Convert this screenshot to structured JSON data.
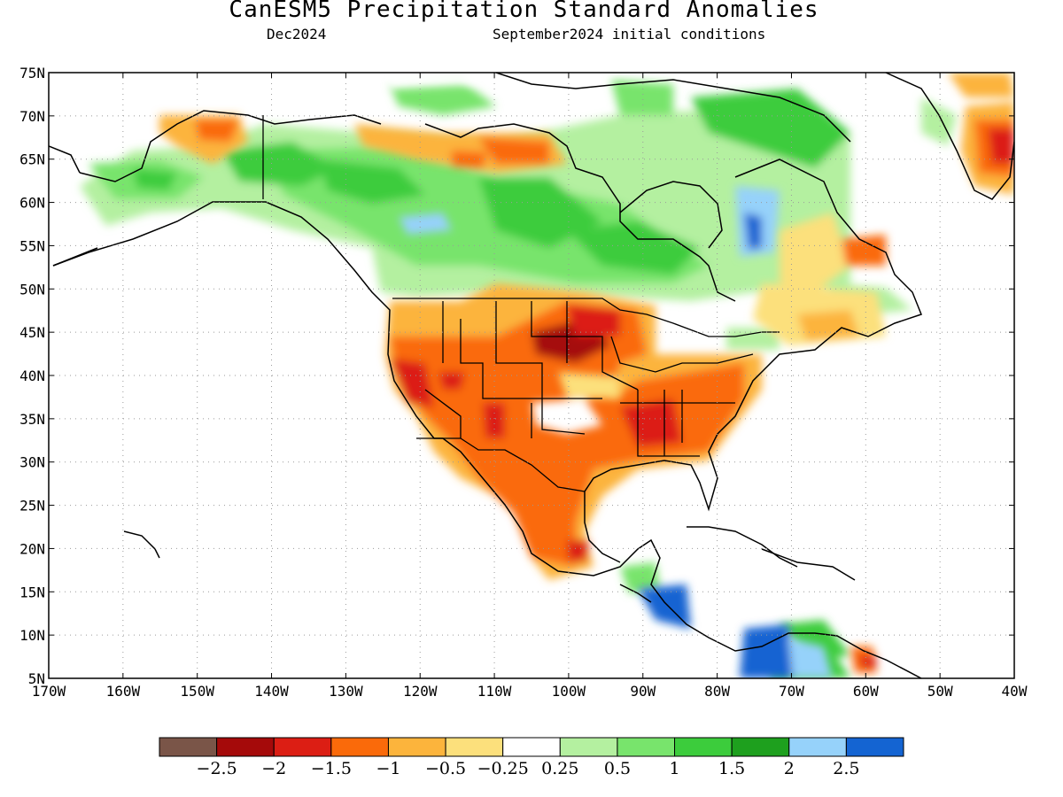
{
  "title": "CanESM5 Precipitation Standard Anomalies",
  "subtitle_left": "Dec2024",
  "subtitle_right": "September2024 initial conditions",
  "map": {
    "lat_ticks": [
      "75N",
      "70N",
      "65N",
      "60N",
      "55N",
      "50N",
      "45N",
      "40N",
      "35N",
      "30N",
      "25N",
      "20N",
      "15N",
      "10N",
      "5N"
    ],
    "lon_ticks": [
      "170W",
      "160W",
      "150W",
      "140W",
      "130W",
      "120W",
      "110W",
      "100W",
      "90W",
      "80W",
      "70W",
      "60W",
      "50W",
      "40W"
    ],
    "lon_range": [
      -170,
      -40
    ],
    "lat_range": [
      5,
      75
    ]
  },
  "colorbar": {
    "colors": [
      "#7a5548",
      "#a50a0a",
      "#dc1e14",
      "#fa6a0a",
      "#fcb43c",
      "#fce07c",
      "#ffffff",
      "#b4f0a0",
      "#78e46c",
      "#3ccc3c",
      "#1ea01e",
      "#96d2fa",
      "#1464d2"
    ],
    "labels": [
      "−2.5",
      "−2",
      "−1.5",
      "−1",
      "−0.5",
      "−0.25",
      "0.25",
      "0.5",
      "1",
      "1.5",
      "2",
      "2.5"
    ]
  }
}
